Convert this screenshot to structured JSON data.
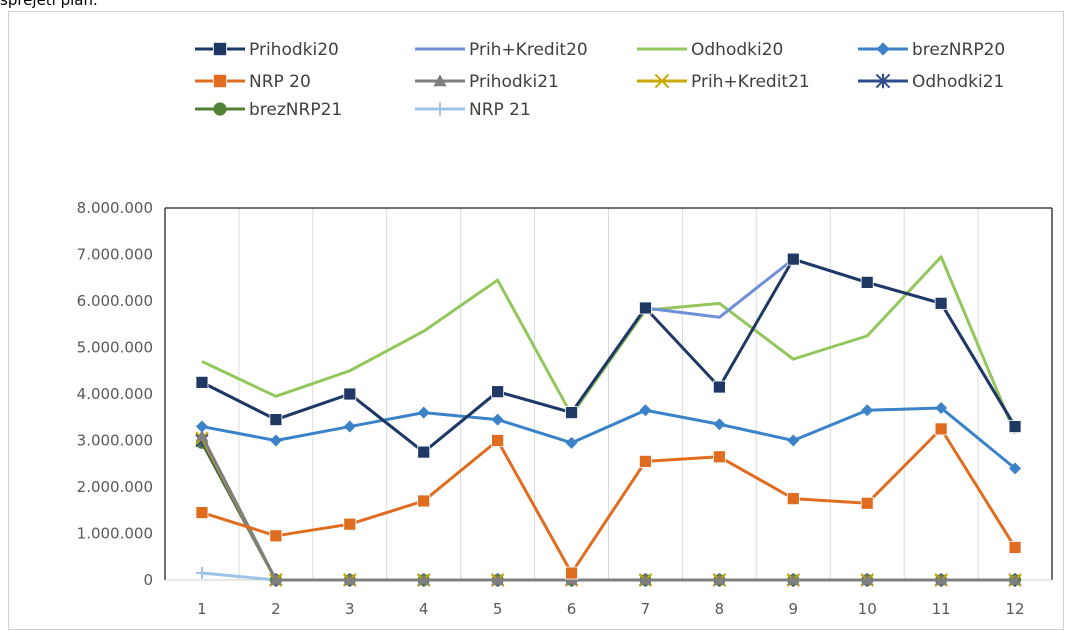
{
  "caption": "sprejeti plan.",
  "chart_data": {
    "type": "line",
    "categories": [
      "1",
      "2",
      "3",
      "4",
      "5",
      "6",
      "7",
      "8",
      "9",
      "10",
      "11",
      "12"
    ],
    "ylim": [
      0,
      8000000
    ],
    "yticks": [
      0,
      1000000,
      2000000,
      3000000,
      4000000,
      5000000,
      6000000,
      7000000,
      8000000
    ],
    "ytick_labels": [
      "0",
      "1.000.000",
      "2.000.000",
      "3.000.000",
      "4.000.000",
      "5.000.000",
      "6.000.000",
      "7.000.000",
      "8.000.000"
    ],
    "grid": "vertical",
    "legend_position": "top",
    "series": [
      {
        "name": "Prihodki20",
        "color": "#203864",
        "marker": "square",
        "values": [
          4250000,
          3450000,
          4000000,
          2750000,
          4050000,
          3600000,
          5850000,
          4150000,
          6900000,
          6400000,
          5950000,
          3300000
        ]
      },
      {
        "name": "Prih+Kredit20",
        "color": "#6f8fd6",
        "marker": "none",
        "values": [
          4250000,
          3450000,
          4000000,
          2750000,
          4050000,
          3600000,
          5850000,
          5650000,
          6900000,
          6400000,
          5950000,
          3300000
        ]
      },
      {
        "name": "Odhodki20",
        "color": "#93c75c",
        "marker": "none",
        "values": [
          4700000,
          3950000,
          4500000,
          5350000,
          6450000,
          3550000,
          5800000,
          5950000,
          4750000,
          5250000,
          6950000,
          3150000
        ]
      },
      {
        "name": "brezNRP20",
        "color": "#3b82c8",
        "marker": "diamond",
        "values": [
          3300000,
          3000000,
          3300000,
          3600000,
          3450000,
          2950000,
          3650000,
          3350000,
          3000000,
          3650000,
          3700000,
          2400000
        ]
      },
      {
        "name": "NRP 20",
        "color": "#e06c1f",
        "marker": "square",
        "values": [
          1450000,
          950000,
          1200000,
          1700000,
          3000000,
          150000,
          2550000,
          2650000,
          1750000,
          1650000,
          3250000,
          700000
        ]
      },
      {
        "name": "Prihodki21",
        "color": "#7f7f7f",
        "marker": "triangle",
        "values": [
          3100000,
          0,
          0,
          0,
          0,
          0,
          0,
          0,
          0,
          0,
          0,
          0
        ]
      },
      {
        "name": "Prih+Kredit21",
        "color": "#c9a800",
        "marker": "x",
        "values": [
          3050000,
          0,
          0,
          0,
          0,
          0,
          0,
          0,
          0,
          0,
          0,
          0
        ]
      },
      {
        "name": "Odhodki21",
        "color": "#2f4d8a",
        "marker": "star",
        "values": [
          3000000,
          0,
          0,
          0,
          0,
          0,
          0,
          0,
          0,
          0,
          0,
          0
        ]
      },
      {
        "name": "brezNRP21",
        "color": "#538135",
        "marker": "circle",
        "values": [
          2950000,
          0,
          0,
          0,
          0,
          0,
          0,
          0,
          0,
          0,
          0,
          0
        ]
      },
      {
        "name": "NRP 21",
        "color": "#9dc3e6",
        "marker": "plus",
        "values": [
          150000,
          0,
          0,
          0,
          0,
          0,
          0,
          0,
          0,
          0,
          0,
          0
        ]
      }
    ]
  }
}
